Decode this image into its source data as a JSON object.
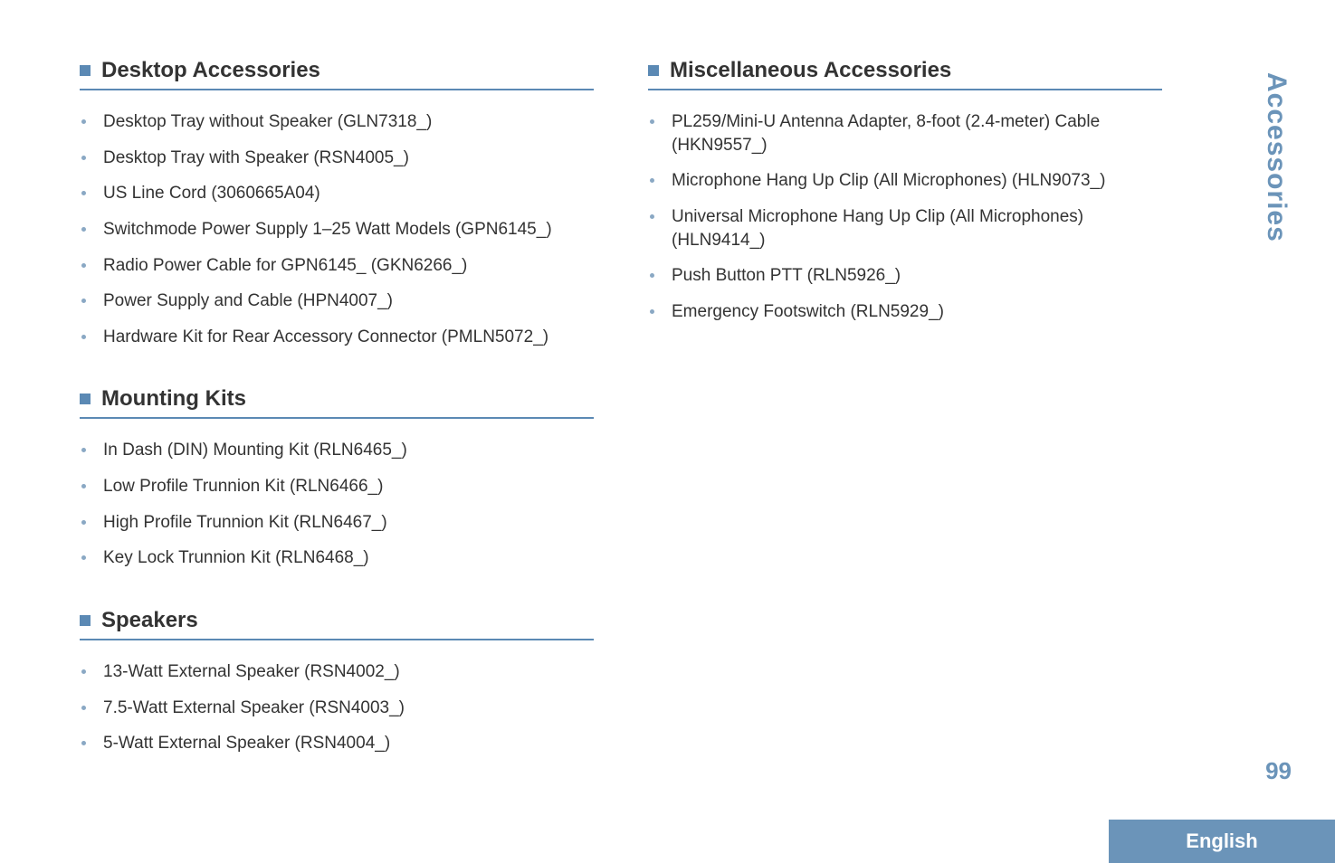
{
  "colors": {
    "accent": "#5b89b4",
    "accent_dark": "#4a7aa8",
    "rule": "#5b89b4",
    "bullet": "#8aa8c4",
    "side_text": "#6b94b9",
    "page_num": "#6b94b9",
    "lang_bg": "#6b94b9",
    "text": "#333333"
  },
  "side_tab": "Accessories",
  "page_number": "99",
  "language": "English",
  "left": {
    "sections": [
      {
        "title": "Desktop Accessories",
        "items": [
          "Desktop Tray without Speaker (GLN7318_)",
          "Desktop Tray with Speaker (RSN4005_)",
          "US Line Cord (3060665A04)",
          "Switchmode Power Supply 1–25 Watt Models (GPN6145_)",
          "Radio Power Cable for GPN6145_ (GKN6266_)",
          "Power Supply and Cable (HPN4007_)",
          "Hardware Kit for Rear Accessory Connector (PMLN5072_)"
        ]
      },
      {
        "title": "Mounting Kits",
        "items": [
          "In Dash (DIN) Mounting Kit (RLN6465_)",
          "Low Profile Trunnion Kit (RLN6466_)",
          "High Profile Trunnion Kit (RLN6467_)",
          "Key Lock Trunnion Kit (RLN6468_)"
        ]
      },
      {
        "title": "Speakers",
        "items": [
          "13-Watt External Speaker (RSN4002_)",
          "7.5-Watt External Speaker (RSN4003_)",
          "5-Watt External Speaker (RSN4004_)"
        ]
      }
    ]
  },
  "right": {
    "sections": [
      {
        "title": "Miscellaneous Accessories",
        "items": [
          "PL259/Mini-U Antenna Adapter, 8-foot (2.4-meter) Cable (HKN9557_)",
          "Microphone Hang Up Clip (All Microphones) (HLN9073_)",
          "Universal Microphone Hang Up Clip (All Microphones) (HLN9414_)",
          "Push Button PTT (RLN5926_)",
          "Emergency Footswitch (RLN5929_)"
        ]
      }
    ]
  }
}
